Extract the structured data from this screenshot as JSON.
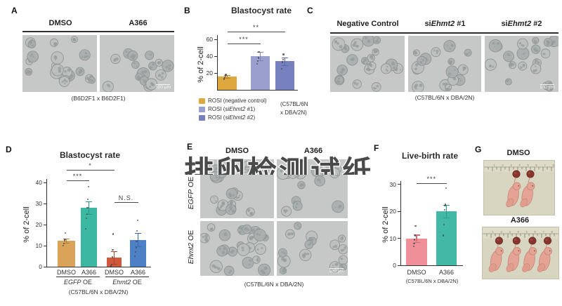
{
  "watermark": {
    "text": "排卵检测试纸"
  },
  "panels": {
    "a": {
      "label": "A",
      "headers": [
        "DMSO",
        "A366"
      ],
      "caption": "(B6D2F1 x B6D2F1)",
      "scalebar": "100 μm"
    },
    "b": {
      "label": "B"
    },
    "c": {
      "label": "C",
      "headers": [
        {
          "pre": "Negative Control",
          "it": "",
          "post": ""
        },
        {
          "pre": "si",
          "it": "Ehmt2",
          "post": " #1"
        },
        {
          "pre": "si",
          "it": "Ehmt2",
          "post": " #2"
        }
      ],
      "caption": "(C57BL/6N x DBA/2N)",
      "scalebar": "100 μm"
    },
    "d": {
      "label": "D"
    },
    "e": {
      "label": "E",
      "col_headers": [
        "DMSO",
        "A366"
      ],
      "row_labels": [
        {
          "it": "EGFP",
          "post": " OE"
        },
        {
          "it": "Ehmt2",
          "post": " OE"
        }
      ],
      "caption": "(C57BL/6N x DBA/2N)",
      "scalebar": "100 μm"
    },
    "f": {
      "label": "F"
    },
    "g": {
      "label": "G",
      "headers": [
        "DMSO",
        "A366"
      ]
    }
  },
  "chart_data": [
    {
      "id": "B",
      "type": "bar",
      "title": "Blastocyst rate",
      "ylabel": "% of 2-cell",
      "categories": [
        "ROSI (negative control)",
        "ROSI (siEhmt2 #1)",
        "ROSI (siEhmt2 #2)"
      ],
      "values": [
        16,
        40,
        34
      ],
      "errors": [
        1.5,
        5,
        4.5
      ],
      "points": [
        [
          13,
          15,
          17,
          18
        ],
        [
          31,
          34,
          38,
          45
        ],
        [
          25,
          33,
          36,
          42
        ]
      ],
      "colors": [
        "#dfa83f",
        "#9a9fce",
        "#7680bf"
      ],
      "error_colors": [
        "#b97f1e",
        "#7a81b8",
        "#5a64a8"
      ],
      "ylim": [
        0,
        60
      ],
      "yticks": [
        20,
        40,
        60
      ],
      "grid": false,
      "legend_position": "bottom-left",
      "significance": [
        {
          "from": 0,
          "to": 1,
          "label": "***"
        },
        {
          "from": 0,
          "to": 2,
          "label": "**"
        }
      ],
      "legend": [
        {
          "pre": "ROSI (negative control)",
          "it": "",
          "post": "",
          "color": "#dfa83f"
        },
        {
          "pre": "ROSI (si",
          "it": "Ehmt2",
          "post": " #1)",
          "color": "#9a9fce"
        },
        {
          "pre": "ROSI (si",
          "it": "Ehmt2",
          "post": " #2)",
          "color": "#7680bf"
        }
      ],
      "strain": [
        "(C57BL/6N",
        "x DBA/2N)"
      ]
    },
    {
      "id": "D",
      "type": "bar",
      "title": "Blastocyst rate",
      "ylabel": "% of 2-cell",
      "categories": [
        "DMSO",
        "A366",
        "DMSO",
        "A366"
      ],
      "values": [
        12.5,
        28,
        4.5,
        12.8
      ],
      "errors": [
        1,
        3,
        3,
        3.2
      ],
      "points": [
        [
          10,
          11,
          12.5,
          13,
          16
        ],
        [
          18,
          23,
          25,
          28,
          32,
          38
        ],
        [
          0.5,
          1,
          4.5,
          8,
          15.5
        ],
        [
          5,
          7,
          9,
          12,
          17,
          22
        ]
      ],
      "colors": [
        "#d9a45a",
        "#3cb7a1",
        "#d0583c",
        "#4d80c4"
      ],
      "error_colors": [
        "#b57f35",
        "#2b9886",
        "#ad4026",
        "#3a69a8"
      ],
      "ylim": [
        0,
        40
      ],
      "yticks": [
        0,
        10,
        20,
        30,
        40
      ],
      "grid": false,
      "significance": [
        {
          "from": 0,
          "to": 1,
          "label": "***"
        },
        {
          "from": 0,
          "to": 2,
          "label": "*"
        },
        {
          "from": 2,
          "to": 3,
          "label": "N.S."
        }
      ],
      "groups": [
        {
          "it": "EGFP",
          "post": " OE"
        },
        {
          "it": "Ehmt2",
          "post": " OE"
        }
      ],
      "caption": "(C57BL/6N x DBA/2N)"
    },
    {
      "id": "F",
      "type": "bar",
      "title": "Live-birth rate",
      "ylabel": "% of 2-cell",
      "categories": [
        "DMSO",
        "A366"
      ],
      "values": [
        10,
        20
      ],
      "errors": [
        1.3,
        2.3
      ],
      "points": [
        [
          7,
          8,
          9.5,
          11,
          14.5
        ],
        [
          11,
          15,
          20.5,
          22,
          22.5,
          28.5
        ]
      ],
      "colors": [
        "#ef9099",
        "#42b8a6"
      ],
      "error_colors": [
        "#d06f7a",
        "#2f9d8d"
      ],
      "ylim": [
        0,
        30
      ],
      "yticks": [
        0,
        10,
        20,
        30
      ],
      "grid": false,
      "significance": [
        {
          "from": 0,
          "to": 1,
          "label": "***"
        }
      ],
      "caption": "(C57BL/6N x DBA/2N)"
    }
  ]
}
